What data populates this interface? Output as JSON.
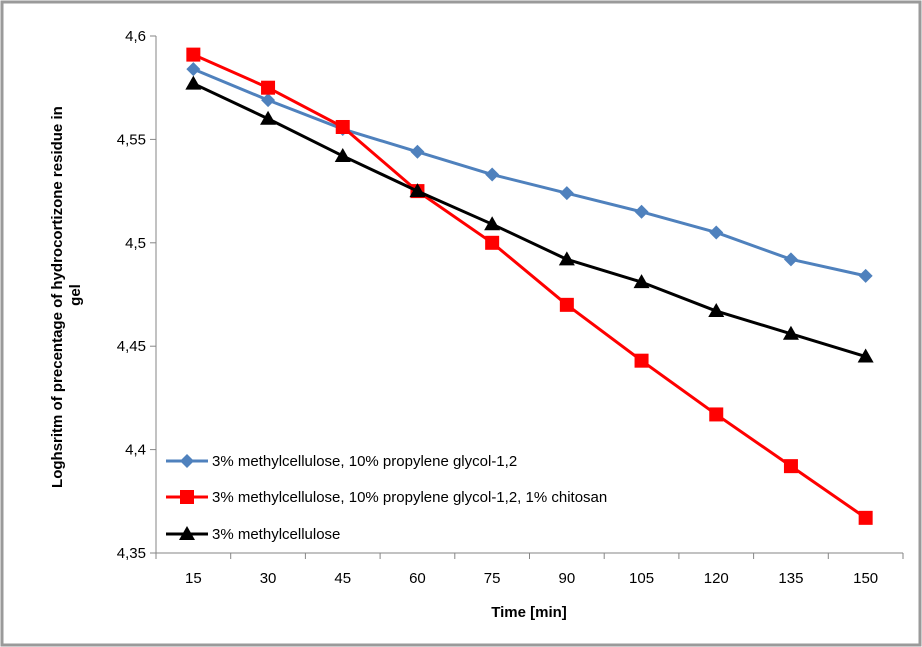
{
  "chart_data": {
    "type": "line",
    "xlabel": "Time [min]",
    "ylabel": "Loghsritm of precentage of hydrocortizone residue in gel",
    "x": [
      15,
      30,
      45,
      60,
      75,
      90,
      105,
      120,
      135,
      150
    ],
    "y_ticks": [
      "4,35",
      "4,4",
      "4,45",
      "4,5",
      "4,55",
      "4,6"
    ],
    "ylim": [
      4.35,
      4.6
    ],
    "grid": false,
    "legend_position": "bottom-left",
    "series": [
      {
        "name": "3% methylcellulose, 10% propylene glycol-1,2",
        "color": "#4F81BD",
        "marker": "diamond",
        "values": [
          4.584,
          4.569,
          4.555,
          4.544,
          4.533,
          4.524,
          4.515,
          4.505,
          4.492,
          4.484
        ]
      },
      {
        "name": "3% methylcellulose, 10% propylene glycol-1,2, 1% chitosan",
        "color": "#FF0000",
        "marker": "square",
        "values": [
          4.591,
          4.575,
          4.556,
          4.525,
          4.5,
          4.47,
          4.443,
          4.417,
          4.392,
          4.367
        ]
      },
      {
        "name": "3%  methylcellulose",
        "color": "#000000",
        "marker": "triangle",
        "values": [
          4.577,
          4.56,
          4.542,
          4.525,
          4.509,
          4.492,
          4.481,
          4.467,
          4.456,
          4.445
        ]
      }
    ]
  }
}
